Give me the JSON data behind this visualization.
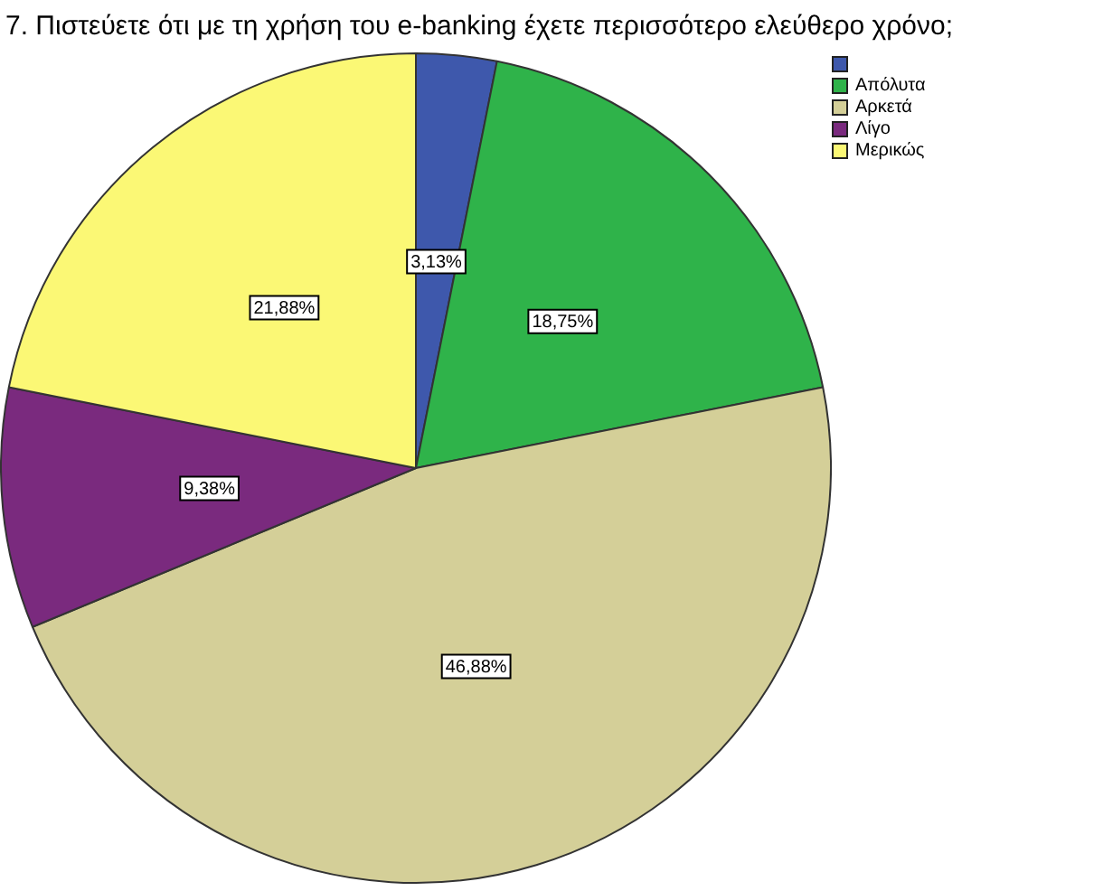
{
  "chart_data": {
    "type": "pie",
    "title": "7. Πιστεύετε ότι με τη χρήση του e-banking έχετε περισσότερο ελεύθερο χρόνο;",
    "categories": [
      null,
      "Απόλυτα",
      "Αρκετά",
      "Λίγο",
      "Μερικώς"
    ],
    "values": [
      3.13,
      18.75,
      46.88,
      9.38,
      21.88
    ],
    "colors": [
      "#3e58ac",
      "#2fb34a",
      "#d4cf98",
      "#7a2a7e",
      "#fbf875"
    ],
    "value_labels": [
      "3,13%",
      "18,75%",
      "46,88%",
      "9,38%",
      "21,88%"
    ],
    "legend": "top right"
  }
}
